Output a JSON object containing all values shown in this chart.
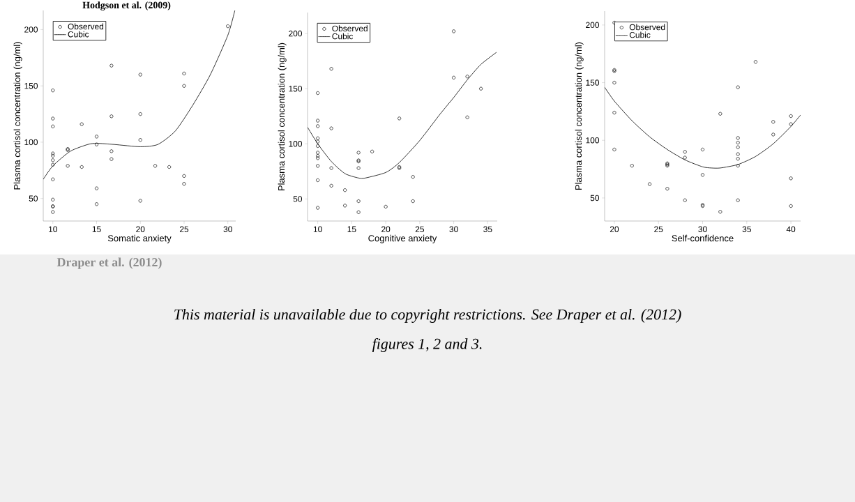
{
  "chart_data": [
    {
      "type": "scatter",
      "title": "Hodgson et al. (2009)",
      "xlabel": "Somatic anxiety",
      "ylabel": "Plasma cortisol concentration (ng/ml)",
      "xlim": [
        8.9,
        30.9
      ],
      "ylim": [
        30,
        217
      ],
      "xticks": [
        10,
        15,
        20,
        25,
        30
      ],
      "yticks": [
        50,
        100,
        150,
        200
      ],
      "legend": "top left",
      "series": [
        {
          "name": "Observed",
          "type": "scatter",
          "marker": "circle",
          "color": "#000000",
          "x": [
            10,
            10,
            10,
            10,
            10,
            10,
            10,
            10,
            10,
            10,
            10,
            10,
            11.7,
            11.7,
            11.7,
            13.3,
            13.3,
            15,
            15,
            15,
            15,
            16.7,
            16.7,
            16.7,
            16.7,
            20,
            20,
            20,
            20,
            21.7,
            23.3,
            25,
            25,
            25,
            25,
            30
          ],
          "values": [
            146,
            121,
            114,
            90,
            88,
            84,
            80,
            67,
            49,
            43,
            43,
            38,
            94,
            93,
            79,
            116,
            78,
            105,
            98,
            59,
            45,
            168,
            123,
            92,
            85,
            160,
            125,
            102,
            48,
            79,
            78,
            161,
            150,
            70,
            63,
            203
          ]
        },
        {
          "name": "Cubic",
          "type": "line",
          "marker": "none",
          "color": "#000000",
          "line_style": "solid",
          "x": [
            8.9,
            10,
            12,
            14,
            15,
            17,
            20,
            22,
            24,
            26,
            28,
            30,
            30.8
          ],
          "values": [
            67,
            79,
            92,
            98,
            99,
            98,
            96,
            98,
            110,
            133,
            160,
            195,
            217
          ]
        }
      ]
    },
    {
      "type": "scatter",
      "xlabel": "Cognitive anxiety",
      "ylabel": "Plasma cortisol concentration (ng/ml)",
      "xlim": [
        8.5,
        36.4
      ],
      "ylim": [
        30,
        219
      ],
      "xticks": [
        10,
        15,
        20,
        25,
        30,
        35
      ],
      "yticks": [
        50,
        100,
        150,
        200
      ],
      "legend": "top left",
      "series": [
        {
          "name": "Observed",
          "type": "scatter",
          "marker": "circle",
          "color": "#000000",
          "x": [
            10,
            10,
            10,
            10,
            10,
            10,
            10,
            10,
            10,
            10,
            10,
            10,
            12,
            12,
            12,
            12,
            14,
            14,
            16,
            16,
            16,
            16,
            16,
            16,
            18,
            20,
            22,
            22,
            22,
            24,
            24,
            30,
            30,
            32,
            32,
            34
          ],
          "values": [
            146,
            121,
            116,
            105,
            102,
            98,
            92,
            89,
            87,
            80,
            67,
            42,
            168,
            114,
            78,
            62,
            58,
            44,
            92,
            85,
            84,
            78,
            48,
            38,
            93,
            43,
            123,
            79,
            78,
            70,
            48,
            202,
            160,
            161,
            124,
            150
          ]
        },
        {
          "name": "Cubic",
          "type": "line",
          "marker": "none",
          "color": "#000000",
          "line_style": "solid",
          "x": [
            8.5,
            10,
            12,
            14,
            16,
            17,
            20,
            22,
            25,
            28,
            30,
            32,
            34,
            36.3
          ],
          "values": [
            115,
            100,
            84,
            73,
            69,
            69,
            74,
            83,
            103,
            127,
            142,
            158,
            172,
            183
          ]
        }
      ]
    },
    {
      "type": "scatter",
      "xlabel": "Self-confidence",
      "ylabel": "Plasma cortisol concentration (ng/ml)",
      "xlim": [
        18.9,
        41.1
      ],
      "ylim": [
        30,
        212
      ],
      "xticks": [
        20,
        25,
        30,
        35,
        40
      ],
      "yticks": [
        50,
        100,
        150,
        200
      ],
      "legend": "top left",
      "series": [
        {
          "name": "Observed",
          "type": "scatter",
          "marker": "circle",
          "color": "#000000",
          "x": [
            20,
            20,
            20,
            20,
            20,
            20,
            22,
            24,
            26,
            26,
            26,
            26,
            28,
            28,
            28,
            30,
            30,
            30,
            30,
            32,
            32,
            34,
            34,
            34,
            34,
            34,
            34,
            34,
            34,
            36,
            38,
            38,
            40,
            40,
            40,
            40
          ],
          "values": [
            202,
            161,
            160,
            150,
            124,
            92,
            78,
            62,
            80,
            79,
            78,
            58,
            90,
            85,
            48,
            92,
            70,
            44,
            43,
            123,
            38,
            146,
            102,
            98,
            94,
            88,
            84,
            78,
            48,
            168,
            116,
            105,
            121,
            114,
            67,
            43
          ]
        },
        {
          "name": "Cubic",
          "type": "line",
          "marker": "none",
          "color": "#000000",
          "line_style": "solid",
          "x": [
            18.9,
            20,
            22,
            24,
            26,
            28,
            30,
            31,
            32,
            34,
            36,
            38,
            40,
            41.1
          ],
          "values": [
            146,
            134,
            117,
            103,
            92,
            83,
            77,
            76,
            76,
            79,
            86,
            97,
            112,
            122
          ]
        }
      ]
    },
    {
      "type": "other",
      "title": "Draper et al. (2012)",
      "annotations": [
        "This material is unavailable due to copyright restrictions. See Draper et al. (2012)",
        "figures 1, 2 and 3."
      ]
    }
  ]
}
